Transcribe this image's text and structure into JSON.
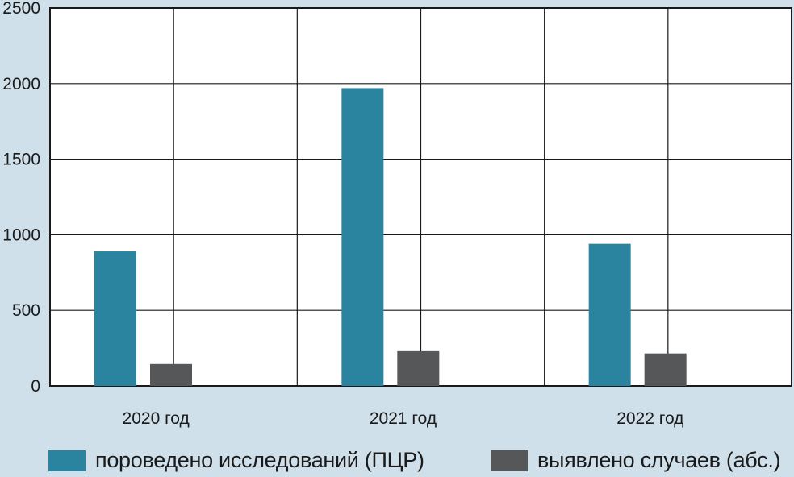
{
  "chart_data": {
    "type": "bar",
    "categories": [
      "2020 год",
      "2021 год",
      "2022 год"
    ],
    "series": [
      {
        "name": "пороведено исследований (ПЦР)",
        "color": "#2a849f",
        "values": [
          890,
          1970,
          940
        ]
      },
      {
        "name": "выявлено случаев (абс.)",
        "color": "#555759",
        "values": [
          145,
          230,
          215
        ]
      }
    ],
    "ylim": [
      0,
      2500
    ],
    "yticks": [
      "0",
      "500",
      "1000",
      "1500",
      "2000",
      "2500"
    ],
    "grid": true,
    "legend": "bottom",
    "colors": {
      "background": "#cfe0ea",
      "plot_area": "#ffffff",
      "gridline": "#1a1a1a"
    }
  }
}
